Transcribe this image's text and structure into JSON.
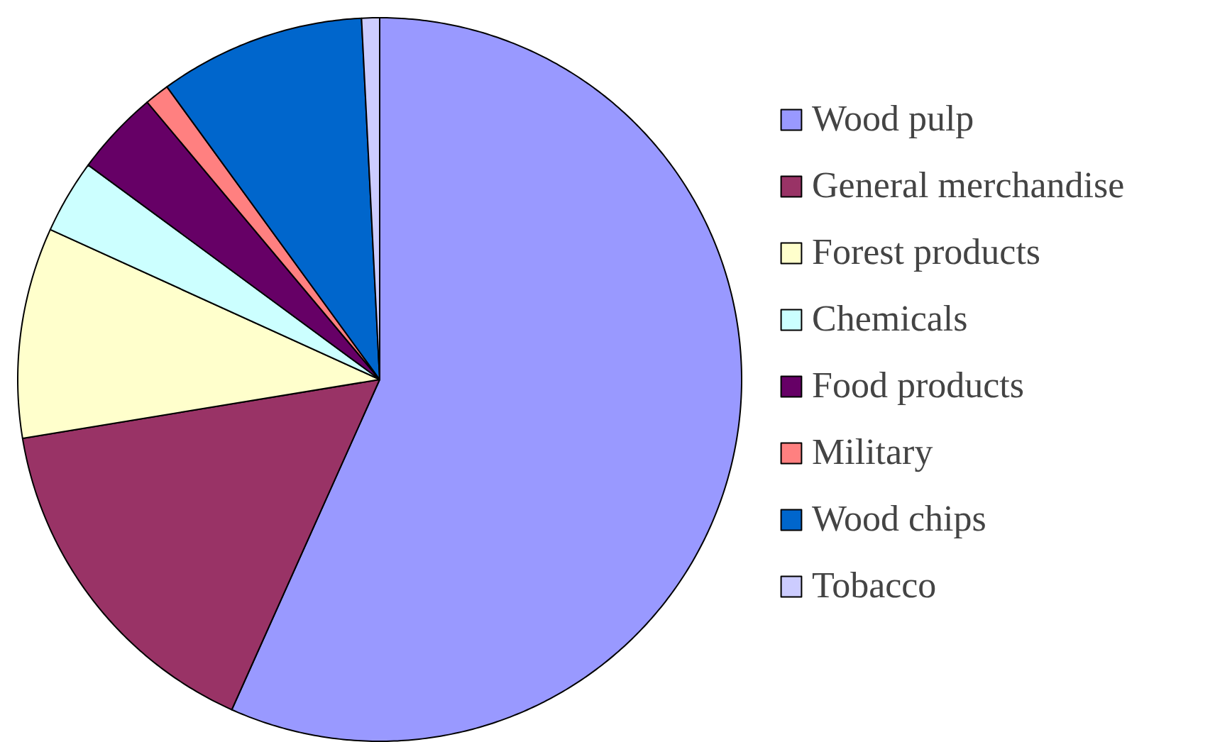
{
  "chart_data": {
    "type": "pie",
    "categories": [
      "Wood pulp",
      "General merchandise",
      "Forest products",
      "Chemicals",
      "Food products",
      "Military",
      "Wood chips",
      "Tobacco"
    ],
    "values": [
      56.7,
      15.7,
      9.4,
      3.3,
      3.8,
      1.1,
      9.2,
      0.8
    ],
    "colors": [
      "#9999ff",
      "#993366",
      "#ffffcc",
      "#ccffff",
      "#660066",
      "#ff8080",
      "#0066cc",
      "#ccccff"
    ],
    "legend": "right"
  }
}
